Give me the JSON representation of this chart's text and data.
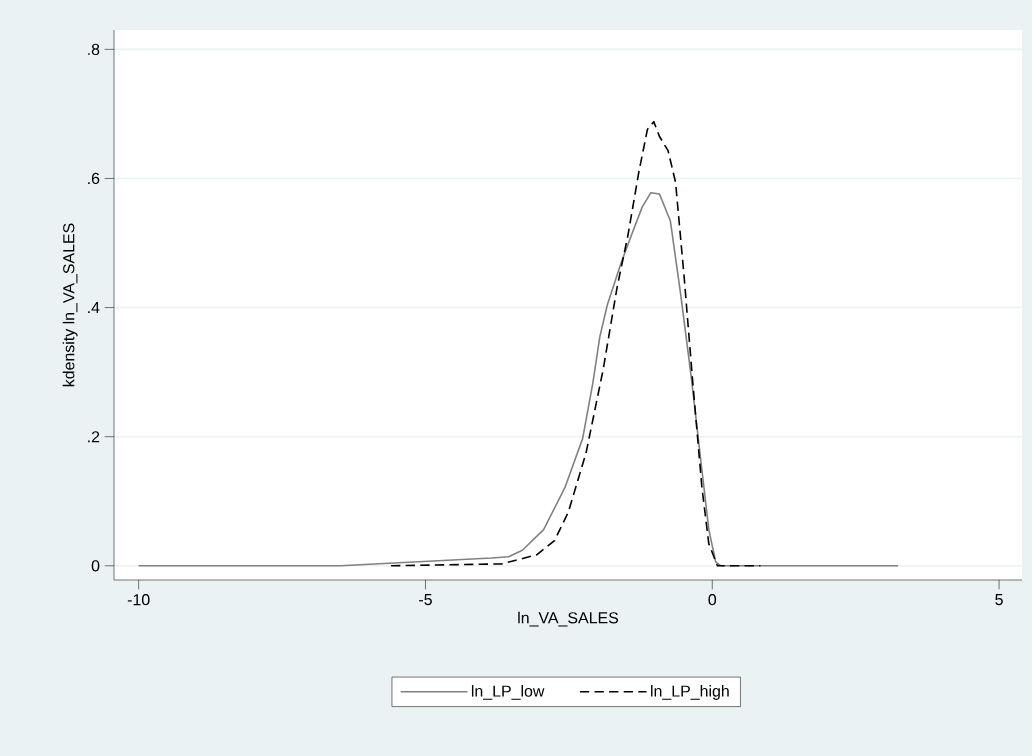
{
  "chart_data": {
    "type": "line",
    "xlabel": "ln_VA_SALES",
    "ylabel": "kdensity ln_VA_SALES",
    "xlim": [
      -10.43,
      5.4
    ],
    "ylim": [
      -0.022,
      0.83
    ],
    "xticks": [
      -10,
      -5,
      0,
      5
    ],
    "yticks": [
      0,
      {
        "value": 0.2,
        "label": ".2"
      },
      {
        "value": 0.4,
        "label": ".4"
      },
      {
        "value": 0.6,
        "label": ".6"
      },
      {
        "value": 0.8,
        "label": ".8"
      }
    ],
    "grid": "y",
    "legend": "bottom",
    "series": [
      {
        "name": "ln_LP_low",
        "color": "#808080",
        "line_style": "solid",
        "x": [
          -10.0,
          -6.48,
          -3.85,
          -3.55,
          -3.31,
          -2.94,
          -2.57,
          -2.26,
          -2.08,
          -1.96,
          -1.83,
          -1.59,
          -1.41,
          -1.22,
          -1.07,
          -0.92,
          -0.73,
          -0.55,
          -0.37,
          -0.18,
          -0.06,
          0.06,
          0.15,
          3.24
        ],
        "values": [
          0,
          0,
          0.012,
          0.014,
          0.024,
          0.056,
          0.121,
          0.197,
          0.284,
          0.355,
          0.404,
          0.469,
          0.512,
          0.556,
          0.578,
          0.576,
          0.534,
          0.42,
          0.295,
          0.148,
          0.056,
          0.006,
          0,
          0
        ]
      },
      {
        "name": "ln_LP_high",
        "color": "#000000",
        "line_style": "dashed",
        "x": [
          -5.6,
          -3.67,
          -3.06,
          -2.75,
          -2.51,
          -2.2,
          -1.9,
          -1.66,
          -1.47,
          -1.28,
          -1.13,
          -1.02,
          -0.92,
          -0.77,
          -0.64,
          -0.49,
          -0.34,
          -0.18,
          -0.06,
          0.09,
          0.84
        ],
        "values": [
          0,
          0.003,
          0.017,
          0.039,
          0.083,
          0.175,
          0.305,
          0.431,
          0.512,
          0.61,
          0.676,
          0.688,
          0.665,
          0.643,
          0.594,
          0.447,
          0.284,
          0.121,
          0.034,
          0,
          0
        ]
      }
    ]
  }
}
